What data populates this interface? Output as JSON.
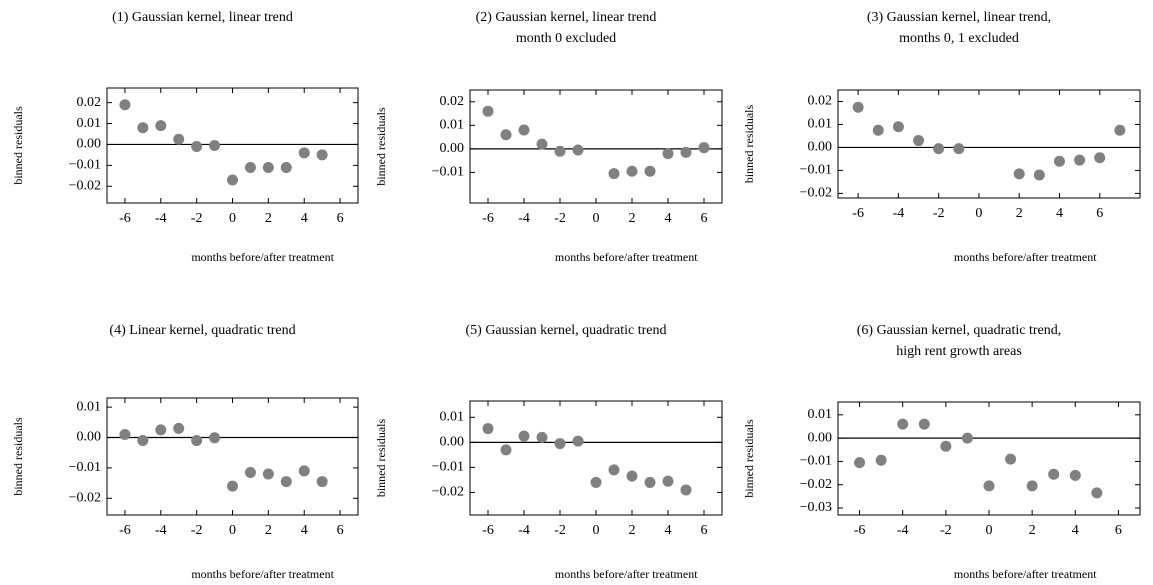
{
  "chart_data": [
    {
      "type": "scatter",
      "title": [
        "(1) Gaussian kernel, linear trend"
      ],
      "xlabel": "months before/after treatment",
      "ylabel": "binned residuals",
      "color": "#808080",
      "hline": 0,
      "x": [
        -6,
        -5,
        -4,
        -3,
        -2,
        -1,
        0,
        1,
        2,
        3,
        4,
        5
      ],
      "values": [
        0.019,
        0.008,
        0.009,
        0.0025,
        -0.001,
        -0.0005,
        -0.017,
        -0.011,
        -0.011,
        -0.011,
        -0.004,
        -0.005
      ],
      "xlim": [
        -7,
        7
      ],
      "xticks": [
        -6,
        -4,
        -2,
        0,
        2,
        4,
        6
      ],
      "ylim": [
        -0.028,
        0.027
      ],
      "yticks": [
        0.02,
        0.01,
        {
          "value": 0,
          "label": "0.00"
        },
        {
          "value": -0.01,
          "label": "−0.01"
        },
        {
          "value": -0.02,
          "label": "−0.02"
        }
      ]
    },
    {
      "type": "scatter",
      "title": [
        "(2) Gaussian kernel, linear trend",
        "month 0 excluded"
      ],
      "xlabel": "months before/after treatment",
      "ylabel": "binned residuals",
      "color": "#808080",
      "hline": 0,
      "x": [
        -6,
        -5,
        -4,
        -3,
        -2,
        -1,
        1,
        2,
        3,
        4,
        5,
        6
      ],
      "values": [
        0.016,
        0.006,
        0.008,
        0.002,
        -0.001,
        -0.0005,
        -0.0105,
        -0.0095,
        -0.0095,
        -0.002,
        -0.0015,
        0.0005
      ],
      "xlim": [
        -7,
        7
      ],
      "xticks": [
        -6,
        -4,
        -2,
        0,
        2,
        4,
        6
      ],
      "ylim": [
        -0.023,
        0.025
      ],
      "yticks": [
        0.02,
        0.01,
        {
          "value": 0,
          "label": "0.00"
        },
        {
          "value": -0.01,
          "label": "−0.01"
        }
      ]
    },
    {
      "type": "scatter",
      "title": [
        "(3) Gaussian kernel, linear trend,",
        "months 0, 1 excluded"
      ],
      "xlabel": "months before/after treatment",
      "ylabel": "binned residuals",
      "color": "#808080",
      "hline": 0,
      "x": [
        -6,
        -5,
        -4,
        -3,
        -2,
        -1,
        2,
        3,
        4,
        5,
        6,
        7
      ],
      "values": [
        0.0175,
        0.0075,
        0.009,
        0.003,
        -0.0005,
        -0.0005,
        -0.0115,
        -0.012,
        -0.006,
        -0.0055,
        -0.0045,
        0.0075
      ],
      "xlim": [
        -7,
        8
      ],
      "xticks": [
        -6,
        -4,
        -2,
        0,
        2,
        4,
        6
      ],
      "ylim": [
        -0.022,
        0.025
      ],
      "yticks": [
        0.02,
        0.01,
        {
          "value": 0,
          "label": "0.00"
        },
        {
          "value": -0.01,
          "label": "−0.01"
        },
        {
          "value": -0.02,
          "label": "−0.02"
        }
      ]
    },
    {
      "type": "scatter",
      "title": [
        "(4) Linear kernel, quadratic trend"
      ],
      "xlabel": "months before/after treatment",
      "ylabel": "binned residuals",
      "color": "#808080",
      "hline": 0,
      "x": [
        -6,
        -5,
        -4,
        -3,
        -2,
        -1,
        0,
        1,
        2,
        3,
        4,
        5
      ],
      "values": [
        0.001,
        -0.001,
        0.0025,
        0.003,
        -0.001,
        -0.0001,
        -0.016,
        -0.0115,
        -0.012,
        -0.0145,
        -0.011,
        -0.0145
      ],
      "xlim": [
        -7,
        7
      ],
      "xticks": [
        -6,
        -4,
        -2,
        0,
        2,
        4,
        6
      ],
      "ylim": [
        -0.0255,
        0.013
      ],
      "yticks": [
        0.01,
        {
          "value": 0,
          "label": "0.00"
        },
        {
          "value": -0.01,
          "label": "−0.01"
        },
        {
          "value": -0.02,
          "label": "−0.02"
        }
      ]
    },
    {
      "type": "scatter",
      "title": [
        "(5) Gaussian kernel, quadratic trend"
      ],
      "xlabel": "months before/after treatment",
      "ylabel": "binned residuals",
      "color": "#808080",
      "hline": 0,
      "x": [
        -6,
        -5,
        -4,
        -3,
        -2,
        -1,
        0,
        1,
        2,
        3,
        4,
        5
      ],
      "values": [
        0.0055,
        -0.003,
        0.0025,
        0.002,
        -0.0005,
        0.0005,
        -0.016,
        -0.011,
        -0.0135,
        -0.016,
        -0.0155,
        -0.019
      ],
      "xlim": [
        -7,
        7
      ],
      "xticks": [
        -6,
        -4,
        -2,
        0,
        2,
        4,
        6
      ],
      "ylim": [
        -0.029,
        0.0165
      ],
      "yticks": [
        0.01,
        {
          "value": 0,
          "label": "0.00"
        },
        {
          "value": -0.01,
          "label": "−0.01"
        },
        {
          "value": -0.02,
          "label": "−0.02"
        }
      ]
    },
    {
      "type": "scatter",
      "title": [
        "(6) Gaussian kernel, quadratic trend,",
        "high rent growth areas"
      ],
      "xlabel": "months before/after treatment",
      "ylabel": "binned residuals",
      "color": "#808080",
      "hline": 0,
      "x": [
        -6,
        -5,
        -4,
        -3,
        -2,
        -1,
        0,
        1,
        2,
        3,
        4,
        5
      ],
      "values": [
        -0.0105,
        -0.0095,
        0.006,
        0.006,
        -0.0035,
        0,
        -0.0205,
        -0.009,
        -0.0205,
        -0.0155,
        -0.016,
        -0.0235
      ],
      "xlim": [
        -7,
        7
      ],
      "xticks": [
        -6,
        -4,
        -2,
        0,
        2,
        4,
        6
      ],
      "ylim": [
        -0.033,
        0.0155
      ],
      "yticks": [
        0.01,
        {
          "value": 0,
          "label": "0.00"
        },
        {
          "value": -0.01,
          "label": "−0.01"
        },
        {
          "value": -0.02,
          "label": "−0.02"
        },
        {
          "value": -0.03,
          "label": "−0.03"
        }
      ]
    }
  ]
}
